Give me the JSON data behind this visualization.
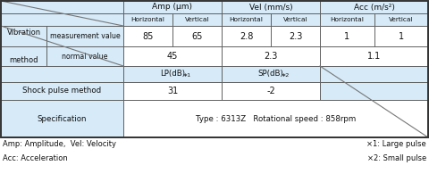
{
  "bg_color": "#d6eaf8",
  "cell_bg": "#ffffff",
  "border_color": "#444444",
  "figsize": [
    4.8,
    2.04
  ],
  "dpi": 100,
  "col_headers": [
    "Amp (μm)",
    "Vel (mm/s)",
    "Acc (m/s²)"
  ],
  "subheaders": [
    "Horizontal",
    "Vertical",
    "Horizontal",
    "Vertical",
    "Horizontal",
    "Vertical"
  ],
  "vibration_lines": [
    "Vibration",
    "method"
  ],
  "meas_label": "measurement value",
  "normal_label": "normal value",
  "lp_label": "LP(dB)∗1",
  "sp_label": "SP(dB)∗2",
  "shock_label": "Shock pulse method",
  "spec_label": "Specification",
  "spec_value": "Type : 6313Z   Rotational speed : 858rpm",
  "meas_values": [
    "85",
    "65",
    "2.8",
    "2.3",
    "1",
    "1"
  ],
  "normal_col_values": [
    "45",
    "2.3",
    "1.1"
  ],
  "shock_col_values": [
    "31",
    "-2"
  ],
  "footer_left1": "Amp: Amplitude,  Vel: Velocity",
  "footer_left2": "Acc: Acceleration",
  "footer_right1": "×1: Large pulse",
  "footer_right2": "×2: Small pulse"
}
